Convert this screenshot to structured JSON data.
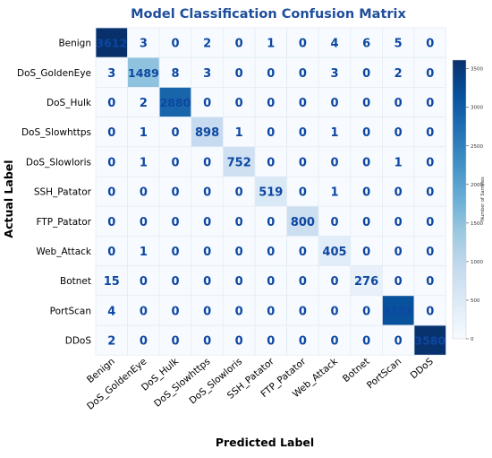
{
  "chart_data": {
    "type": "heatmap",
    "title": "Model Classification Confusion Matrix",
    "xlabel": "Predicted Label",
    "ylabel": "Actual Label",
    "colorbar_label": "Number of Samples",
    "colorbar_ticks": [
      0,
      500,
      1000,
      1500,
      2000,
      2500,
      3000,
      3500
    ],
    "vmin": 0,
    "vmax": 3612,
    "colormap": [
      "#f7fbff",
      "#deebf7",
      "#c6dbef",
      "#9ecae1",
      "#6baed6",
      "#4292c6",
      "#2171b5",
      "#08519c",
      "#08306b"
    ],
    "x_categories": [
      "Benign",
      "DoS_GoldenEye",
      "DoS_Hulk",
      "DoS_Slowhttps",
      "DoS_Slowloris",
      "SSH_Patator",
      "FTP_Patator",
      "Web_Attack",
      "Botnet",
      "PortScan",
      "DDoS"
    ],
    "y_categories": [
      "Benign",
      "DoS_GoldenEye",
      "DoS_Hulk",
      "DoS_Slowhttps",
      "DoS_Slowloris",
      "SSH_Patator",
      "FTP_Patator",
      "Web_Attack",
      "Botnet",
      "PortScan",
      "DDoS"
    ],
    "values": [
      [
        3612,
        3,
        0,
        2,
        0,
        1,
        0,
        4,
        6,
        5,
        0
      ],
      [
        3,
        1489,
        8,
        3,
        0,
        0,
        0,
        3,
        0,
        2,
        0
      ],
      [
        0,
        2,
        2880,
        0,
        0,
        0,
        0,
        0,
        0,
        0,
        0
      ],
      [
        0,
        1,
        0,
        898,
        1,
        0,
        0,
        1,
        0,
        0,
        0
      ],
      [
        0,
        1,
        0,
        0,
        752,
        0,
        0,
        0,
        0,
        1,
        0
      ],
      [
        0,
        0,
        0,
        0,
        0,
        519,
        0,
        1,
        0,
        0,
        0
      ],
      [
        0,
        0,
        0,
        0,
        0,
        0,
        800,
        0,
        0,
        0,
        0
      ],
      [
        0,
        1,
        0,
        0,
        0,
        0,
        0,
        405,
        0,
        0,
        0
      ],
      [
        15,
        0,
        0,
        0,
        0,
        0,
        0,
        0,
        276,
        0,
        0
      ],
      [
        4,
        0,
        0,
        0,
        0,
        0,
        0,
        0,
        0,
        3155,
        0
      ],
      [
        2,
        0,
        0,
        0,
        0,
        0,
        0,
        0,
        0,
        0,
        3580
      ]
    ],
    "annotation_color": "#0d47a1",
    "title_color": "#1f4e9c",
    "grid": true
  }
}
